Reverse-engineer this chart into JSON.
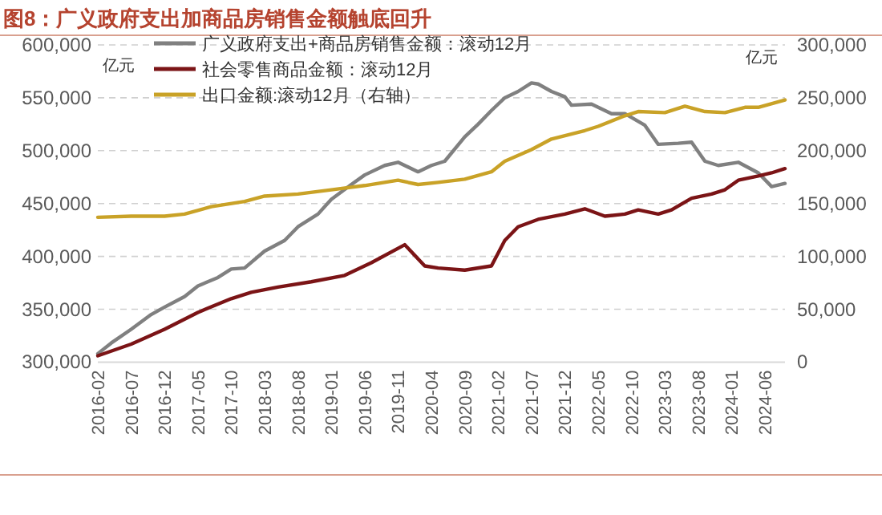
{
  "chart_data": {
    "type": "line",
    "title": "图8：广义政府支出加商品房销售金额触底回升",
    "ylabel": "亿元",
    "y2label": "亿元",
    "xlim": [
      "2016-02",
      "2024-09"
    ],
    "xticks": [
      "2016-02",
      "2016-07",
      "2016-12",
      "2017-05",
      "2017-10",
      "2018-03",
      "2018-08",
      "2019-01",
      "2019-06",
      "2019-11",
      "2020-04",
      "2020-09",
      "2021-02",
      "2021-07",
      "2021-12",
      "2022-05",
      "2022-10",
      "2023-03",
      "2023-08",
      "2024-01",
      "2024-06"
    ],
    "ylim": [
      300000,
      600000
    ],
    "yticks": [
      {
        "value": 300000,
        "label": "300,000"
      },
      {
        "value": 350000,
        "label": "350,000"
      },
      {
        "value": 400000,
        "label": "400,000"
      },
      {
        "value": 450000,
        "label": "450,000"
      },
      {
        "value": 500000,
        "label": "500,000"
      },
      {
        "value": 550000,
        "label": "550,000"
      },
      {
        "value": 600000,
        "label": "600,000"
      }
    ],
    "y2lim": [
      0,
      300000
    ],
    "y2ticks": [
      0,
      {
        "value": 50000,
        "label": "50,000"
      },
      {
        "value": 100000,
        "label": "100,000"
      },
      {
        "value": 150000,
        "label": "150,000"
      },
      {
        "value": 200000,
        "label": "200,000"
      },
      {
        "value": 250000,
        "label": "250,000"
      },
      {
        "value": 300000,
        "label": "300,000"
      }
    ],
    "grid": "y",
    "legend": "top",
    "series": [
      {
        "name": "广义政府支出+商品房销售金额：滚动12月",
        "color": "#808080",
        "x": [
          "2016-02",
          "2016-04",
          "2016-07",
          "2016-10",
          "2016-12",
          "2017-03",
          "2017-05",
          "2017-08",
          "2017-10",
          "2017-12",
          "2018-03",
          "2018-06",
          "2018-08",
          "2018-11",
          "2019-01",
          "2019-04",
          "2019-06",
          "2019-09",
          "2019-11",
          "2020-02",
          "2020-04",
          "2020-06",
          "2020-09",
          "2020-11",
          "2021-01",
          "2021-03",
          "2021-05",
          "2021-07",
          "2021-08",
          "2021-10",
          "2021-12",
          "2022-01",
          "2022-04",
          "2022-07",
          "2022-09",
          "2022-12",
          "2023-02",
          "2023-05",
          "2023-07",
          "2023-09",
          "2023-11",
          "2024-02",
          "2024-05",
          "2024-07",
          "2024-09"
        ],
        "values": [
          308000,
          318000,
          331000,
          345000,
          352000,
          362000,
          372000,
          380000,
          388000,
          389000,
          405000,
          415000,
          428000,
          440000,
          454000,
          468000,
          477000,
          486000,
          489000,
          480000,
          486000,
          490000,
          513000,
          525000,
          538000,
          550000,
          556000,
          564000,
          563000,
          556000,
          551000,
          543000,
          544000,
          535000,
          535000,
          524000,
          506000,
          507000,
          508000,
          490000,
          486000,
          489000,
          479000,
          466000,
          469000
        ]
      },
      {
        "name": "社会零售商品金额：滚动12月",
        "color": "#7b1416",
        "x": [
          "2016-02",
          "2016-07",
          "2016-12",
          "2017-05",
          "2017-10",
          "2018-01",
          "2018-05",
          "2018-10",
          "2019-03",
          "2019-07",
          "2019-12",
          "2020-03",
          "2020-05",
          "2020-09",
          "2021-01",
          "2021-03",
          "2021-05",
          "2021-08",
          "2021-12",
          "2022-03",
          "2022-06",
          "2022-09",
          "2022-11",
          "2023-02",
          "2023-04",
          "2023-07",
          "2023-10",
          "2023-12",
          "2024-02",
          "2024-05",
          "2024-07",
          "2024-09"
        ],
        "values": [
          306000,
          317000,
          331000,
          347000,
          360000,
          366000,
          371000,
          376000,
          382000,
          394000,
          411000,
          391000,
          389000,
          387000,
          391000,
          415000,
          428000,
          435000,
          440000,
          445000,
          438000,
          440000,
          444000,
          440000,
          444000,
          455000,
          459000,
          463000,
          472000,
          476000,
          479000,
          483000
        ]
      },
      {
        "name": "出口金额:滚动12月（右轴）",
        "color": "#c9a227",
        "axis": "y2",
        "x": [
          "2016-02",
          "2016-07",
          "2016-12",
          "2017-03",
          "2017-07",
          "2017-12",
          "2018-03",
          "2018-08",
          "2019-01",
          "2019-06",
          "2019-11",
          "2020-02",
          "2020-05",
          "2020-09",
          "2021-01",
          "2021-03",
          "2021-07",
          "2021-10",
          "2022-03",
          "2022-05",
          "2022-09",
          "2022-11",
          "2023-03",
          "2023-06",
          "2023-09",
          "2023-12",
          "2024-03",
          "2024-05",
          "2024-09"
        ],
        "values": [
          137000,
          138000,
          138000,
          140000,
          147000,
          152000,
          157000,
          159000,
          163000,
          167000,
          172000,
          168000,
          170000,
          173000,
          180000,
          190000,
          201000,
          211000,
          219000,
          223000,
          233000,
          237000,
          236000,
          242000,
          237000,
          236000,
          241000,
          241000,
          248000
        ]
      }
    ]
  }
}
